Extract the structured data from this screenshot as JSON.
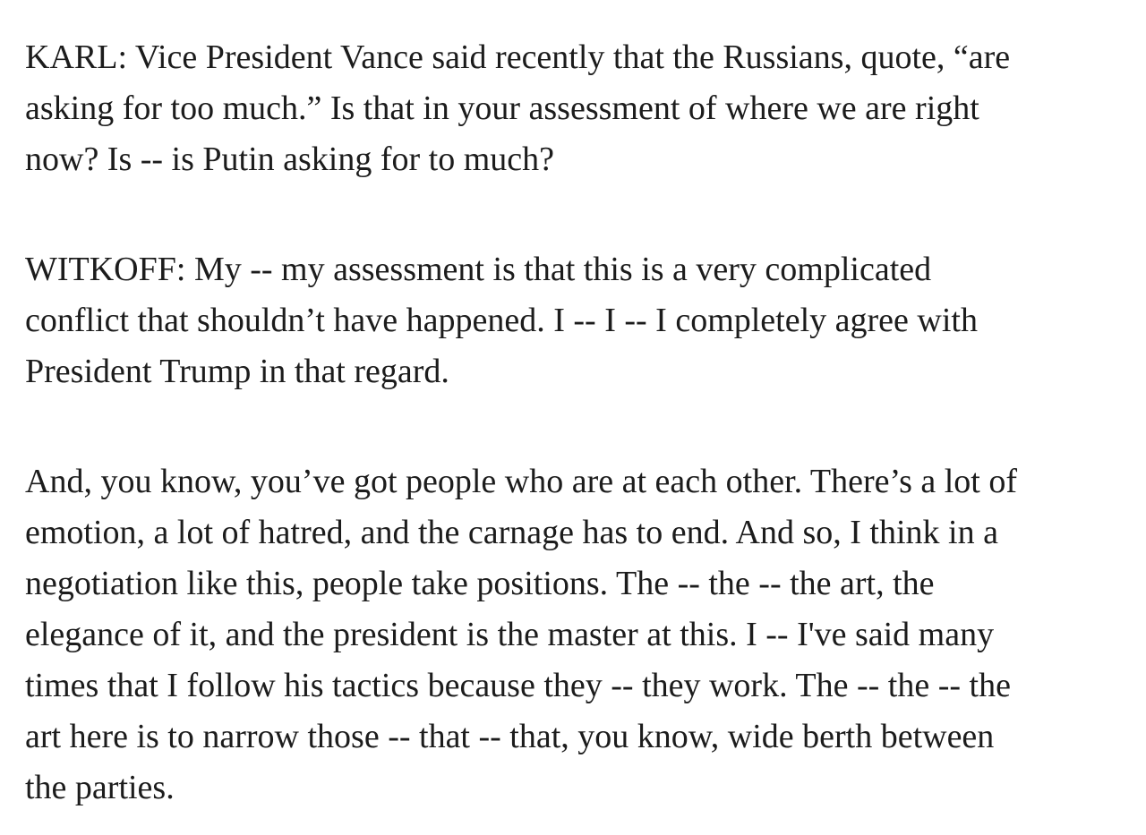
{
  "page": {
    "background_color": "#ffffff",
    "text_color": "#1c1c1c"
  },
  "article": {
    "paragraphs": [
      {
        "speaker": "KARL",
        "lines": [
          "KARL: Vice President Vance said recently that the Russians, quote, “are",
          "asking for too much.” Is that in your assessment of where we are right",
          "now? Is -- is Putin asking for to much?"
        ]
      },
      {
        "speaker": "WITKOFF",
        "lines": [
          "WITKOFF: My -- my assessment is that this is a very complicated",
          "conflict that shouldn’t have happened. I -- I -- I completely agree with",
          "President Trump in that regard."
        ]
      },
      {
        "speaker": "WITKOFF",
        "lines": [
          "And, you know, you’ve got people who are at each other. There’s a lot of",
          "emotion, a lot of hatred, and the carnage has to end. And so, I think in a",
          "negotiation like this, people take positions. The -- the -- the art, the",
          "elegance of it, and the president is the master at this. I -- I've said many",
          "times that I follow his tactics because they -- they work. The -- the -- the",
          "art here is to narrow those -- that -- that, you know, wide berth between",
          "the parties."
        ]
      }
    ]
  }
}
